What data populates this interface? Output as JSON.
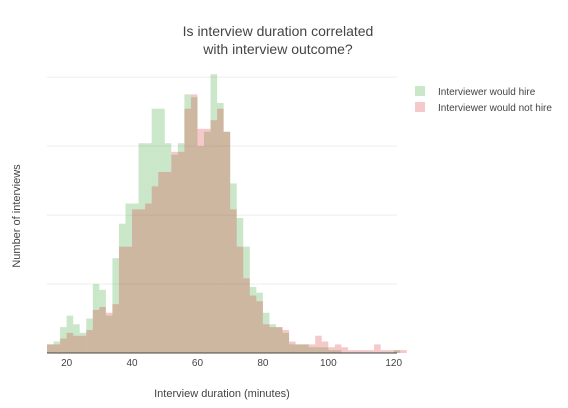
{
  "chart_data": {
    "type": "bar",
    "subtype": "overlaid-histogram",
    "title_lines": [
      "Is interview duration correlated",
      "with interview outcome?"
    ],
    "xlabel": "Interview duration (minutes)",
    "ylabel": "Number of interviews",
    "xlim": [
      14,
      121
    ],
    "ylim": [
      0,
      95
    ],
    "bin_start": 14,
    "bin_width": 2,
    "x_ticks": [
      20,
      40,
      60,
      80,
      100,
      120
    ],
    "y_gridlines": [
      24,
      48,
      72,
      96
    ],
    "grid": true,
    "legend_position": "top-right",
    "series": [
      {
        "name": "Interviewer would hire",
        "color": "#2ca02c",
        "opacity": 0.25,
        "values": [
          3,
          4,
          9,
          13,
          10,
          7,
          12,
          24,
          22,
          13,
          33,
          45,
          52,
          52,
          73,
          73,
          85,
          85,
          73,
          69,
          73,
          90,
          89,
          72,
          77,
          97,
          87,
          77,
          59,
          47,
          37,
          23,
          21,
          14,
          10,
          9,
          7,
          3,
          3,
          3,
          2,
          2,
          2,
          1,
          1,
          0,
          0,
          0,
          0,
          0,
          0,
          0,
          0,
          1,
          0
        ]
      },
      {
        "name": "Interviewer would not hire",
        "color": "#d62728",
        "opacity": 0.25,
        "values": [
          3,
          3,
          5,
          7,
          6,
          6,
          8,
          15,
          16,
          14,
          17,
          37,
          37,
          50,
          50,
          52,
          58,
          63,
          63,
          70,
          70,
          85,
          90,
          78,
          78,
          81,
          85,
          77,
          50,
          37,
          26,
          20,
          18,
          10,
          9,
          9,
          8,
          4,
          3,
          3,
          3,
          6,
          4,
          2,
          3,
          2,
          1,
          1,
          1,
          1,
          3,
          1,
          1,
          1,
          1
        ]
      }
    ]
  }
}
